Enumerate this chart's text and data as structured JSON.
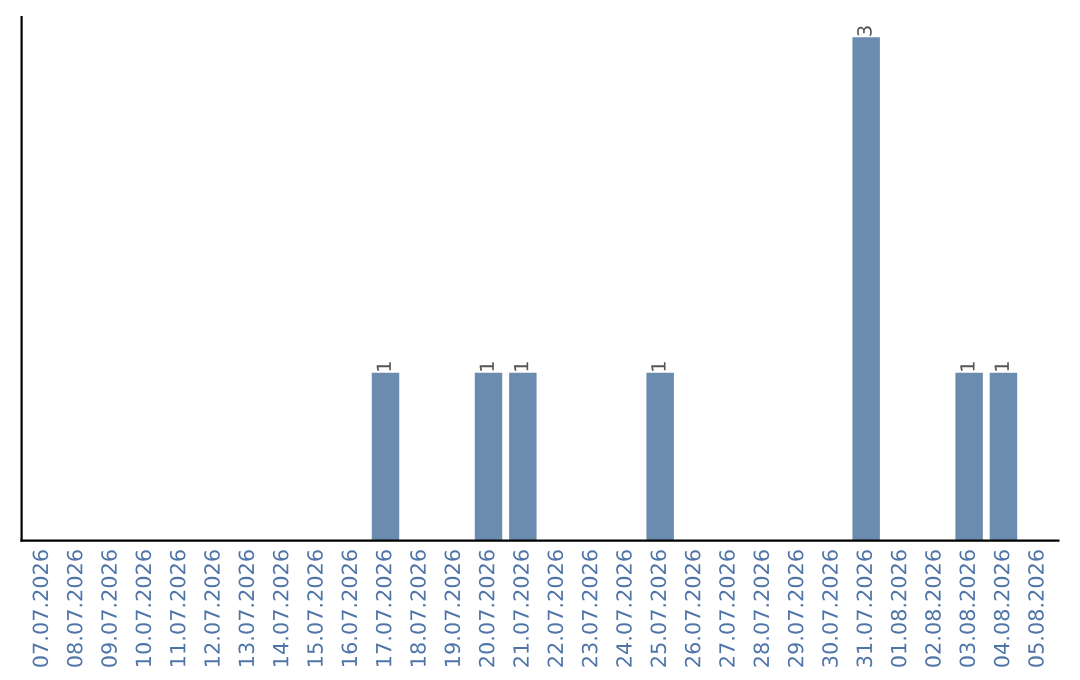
{
  "chart_data": {
    "type": "bar",
    "categories": [
      "07.07.2026",
      "08.07.2026",
      "09.07.2026",
      "10.07.2026",
      "11.07.2026",
      "12.07.2026",
      "13.07.2026",
      "14.07.2026",
      "15.07.2026",
      "16.07.2026",
      "17.07.2026",
      "18.07.2026",
      "19.07.2026",
      "20.07.2026",
      "21.07.2026",
      "22.07.2026",
      "23.07.2026",
      "24.07.2026",
      "25.07.2026",
      "26.07.2026",
      "27.07.2026",
      "28.07.2026",
      "29.07.2026",
      "30.07.2026",
      "31.07.2026",
      "01.08.2026",
      "02.08.2026",
      "03.08.2026",
      "04.08.2026",
      "05.08.2026"
    ],
    "values": [
      0,
      0,
      0,
      0,
      0,
      0,
      0,
      0,
      0,
      0,
      1,
      0,
      0,
      1,
      1,
      0,
      0,
      0,
      1,
      0,
      0,
      0,
      0,
      0,
      3,
      0,
      0,
      1,
      1,
      0
    ],
    "value_labels": [
      null,
      null,
      null,
      null,
      null,
      null,
      null,
      null,
      null,
      null,
      "1",
      null,
      null,
      "1",
      "1",
      null,
      null,
      null,
      "1",
      null,
      null,
      null,
      null,
      null,
      "3",
      null,
      null,
      "1",
      "1",
      null
    ],
    "color": "#6b8cae",
    "tick_labels": "x",
    "grid": false,
    "legend": false
  }
}
